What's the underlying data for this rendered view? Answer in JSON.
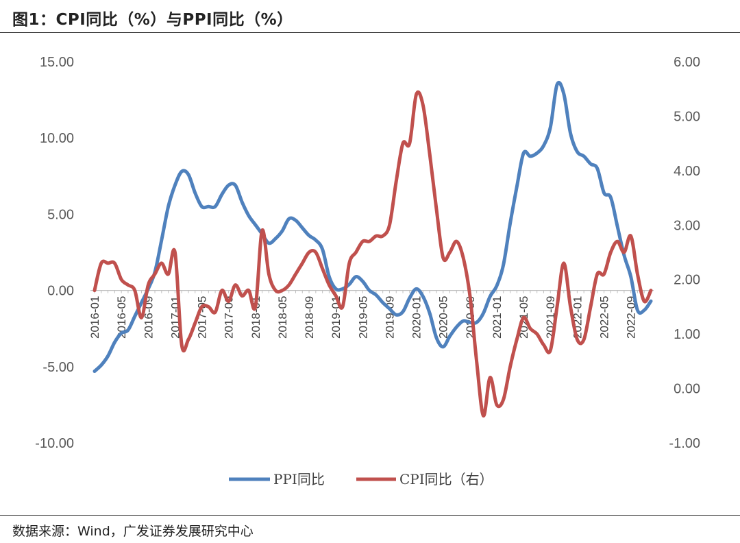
{
  "title": "图1：CPI同比（%）与PPI同比（%）",
  "source": "数据来源：Wind，广发证券发展研究中心",
  "colors": {
    "ppi": "#4f81bd",
    "cpi": "#c0504d",
    "axis": "#bfbfbf",
    "tick_text": "#595959"
  },
  "chart_data": {
    "type": "line",
    "title": "CPI同比（%）与PPI同比（%）",
    "x_tick_labels": [
      "2016-01",
      "2016-05",
      "2016-09",
      "2017-01",
      "2017-05",
      "2017-09",
      "2018-01",
      "2018-05",
      "2018-09",
      "2019-01",
      "2019-05",
      "2019-09",
      "2020-01",
      "2020-05",
      "2020-09",
      "2021-01",
      "2021-05",
      "2021-09",
      "2022-01",
      "2022-05",
      "2022-09"
    ],
    "x_start": "2016-01",
    "x_end": "2022-12",
    "left_axis": {
      "ylim": [
        -10,
        15
      ],
      "ticks": [
        "-10.00",
        "-5.00",
        "0.00",
        "5.00",
        "10.00",
        "15.00"
      ]
    },
    "right_axis": {
      "ylim": [
        -1,
        6
      ],
      "ticks": [
        "-1.00",
        "0.00",
        "1.00",
        "2.00",
        "3.00",
        "4.00",
        "5.00",
        "6.00"
      ]
    },
    "legend": [
      {
        "name": "PPI同比",
        "key": "ppi"
      },
      {
        "name": "CPI同比（右）",
        "key": "cpi"
      }
    ],
    "series": [
      {
        "name": "PPI同比",
        "axis": "left",
        "values": [
          -5.3,
          -4.9,
          -4.3,
          -3.4,
          -2.8,
          -2.6,
          -1.7,
          -0.8,
          0.1,
          1.2,
          3.3,
          5.5,
          6.9,
          7.8,
          7.6,
          6.4,
          5.5,
          5.5,
          5.5,
          6.3,
          6.9,
          6.9,
          5.8,
          4.9,
          4.3,
          3.7,
          3.1,
          3.4,
          3.9,
          4.7,
          4.6,
          4.1,
          3.6,
          3.3,
          2.7,
          0.9,
          0.1,
          0.1,
          0.4,
          0.9,
          0.6,
          0.0,
          -0.3,
          -0.8,
          -1.2,
          -1.6,
          -1.4,
          -0.5,
          0.1,
          -0.4,
          -1.5,
          -3.1,
          -3.7,
          -3.0,
          -2.4,
          -2.0,
          -2.1,
          -2.1,
          -1.5,
          -0.4,
          0.3,
          1.7,
          4.4,
          6.8,
          9.0,
          8.8,
          9.0,
          9.5,
          10.7,
          13.5,
          12.9,
          10.3,
          9.1,
          8.8,
          8.3,
          8.0,
          6.4,
          6.1,
          4.2,
          2.3,
          0.9,
          -1.3,
          -1.3,
          -0.7
        ]
      },
      {
        "name": "CPI同比（右）",
        "axis": "right",
        "values": [
          1.8,
          2.3,
          2.3,
          2.3,
          2.0,
          1.9,
          1.8,
          1.3,
          1.9,
          2.1,
          2.3,
          2.1,
          2.5,
          0.8,
          0.9,
          1.2,
          1.5,
          1.5,
          1.4,
          1.8,
          1.6,
          1.9,
          1.7,
          1.8,
          1.5,
          2.9,
          2.1,
          1.8,
          1.8,
          1.9,
          2.1,
          2.3,
          2.5,
          2.5,
          2.2,
          1.9,
          1.7,
          1.5,
          2.3,
          2.5,
          2.7,
          2.7,
          2.8,
          2.8,
          3.0,
          3.8,
          4.5,
          4.5,
          5.4,
          5.2,
          4.3,
          3.3,
          2.4,
          2.5,
          2.7,
          2.4,
          1.7,
          0.5,
          -0.5,
          0.2,
          -0.3,
          -0.2,
          0.4,
          0.9,
          1.3,
          1.1,
          1.0,
          0.8,
          0.7,
          1.5,
          2.3,
          1.5,
          0.9,
          0.9,
          1.5,
          2.1,
          2.1,
          2.5,
          2.7,
          2.5,
          2.8,
          2.1,
          1.6,
          1.8
        ]
      }
    ]
  }
}
